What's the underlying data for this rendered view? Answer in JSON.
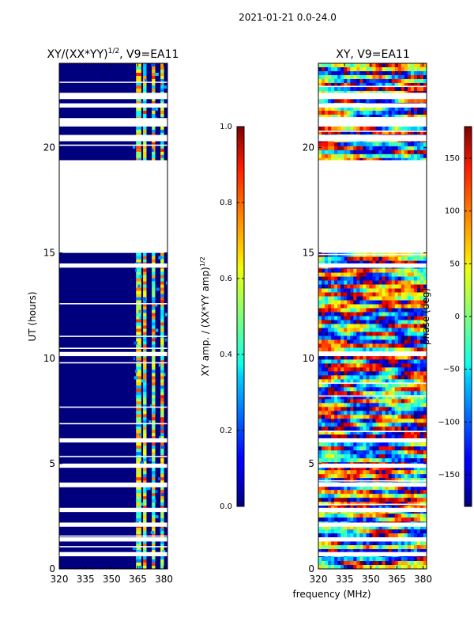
{
  "figure": {
    "suptitle": "2021-01-21 0.0-24.0",
    "common_xlabel": "frequency (MHz)"
  },
  "chart_data": [
    {
      "type": "heatmap",
      "title": "XY/(XX*YY)",
      "title_exponent": "1/2",
      "title_suffix": ", V9=EA11",
      "xlabel": "",
      "ylabel": "UT (hours)",
      "x_ticks": [
        320,
        335,
        350,
        365,
        380
      ],
      "x_tick_labels": [
        "320",
        "335",
        "350",
        "365",
        "380"
      ],
      "xlim": [
        320,
        382
      ],
      "y_ticks": [
        0,
        5,
        10,
        15,
        20
      ],
      "y_tick_labels": [
        "0",
        "5",
        "10",
        "15",
        "20"
      ],
      "ylim": [
        0,
        24
      ],
      "colorbar": {
        "label": "XY amp. / (XX*YY amp)",
        "label_exponent": "1/2",
        "range": [
          0.0,
          1.0
        ],
        "ticks": [
          0.0,
          0.2,
          0.4,
          0.6,
          0.8,
          1.0
        ],
        "tick_labels": [
          "0.0",
          "0.2",
          "0.4",
          "0.6",
          "0.8",
          "1.0"
        ]
      },
      "data_gaps_hours": [
        [
          15.0,
          19.4
        ],
        [
          22.3,
          22.6
        ],
        [
          21.9,
          22.1
        ],
        [
          21.0,
          21.4
        ],
        [
          20.3,
          20.6
        ],
        [
          14.3,
          14.5
        ],
        [
          10.1,
          10.3
        ],
        [
          6.0,
          6.2
        ],
        [
          4.8,
          5.0
        ],
        [
          3.9,
          4.1
        ],
        [
          2.7,
          2.9
        ],
        [
          2.0,
          2.2
        ],
        [
          1.3,
          1.5
        ],
        [
          0.6,
          0.8
        ]
      ],
      "bright_channels_mhz": [
        [
          364,
          367
        ],
        [
          368,
          370
        ],
        [
          373,
          375
        ],
        [
          378,
          380
        ]
      ]
    },
    {
      "type": "heatmap",
      "title": "XY, V9=EA11",
      "xlabel": "frequency (MHz)",
      "ylabel": "",
      "x_ticks": [
        320,
        335,
        350,
        365,
        380
      ],
      "x_tick_labels": [
        "320",
        "335",
        "350",
        "365",
        "380"
      ],
      "xlim": [
        320,
        382
      ],
      "y_ticks": [
        0,
        5,
        10,
        15,
        20
      ],
      "y_tick_labels": [
        "0",
        "5",
        "10",
        "15",
        "20"
      ],
      "ylim": [
        0,
        24
      ],
      "colorbar": {
        "label": "phase (deg)",
        "range": [
          -180,
          180
        ],
        "ticks": [
          -150,
          -100,
          -50,
          0,
          50,
          100,
          150
        ],
        "tick_labels": [
          "−150",
          "−100",
          "−50",
          "0",
          "50",
          "100",
          "150"
        ]
      },
      "data_gaps_hours": [
        [
          15.0,
          19.4
        ],
        [
          22.3,
          22.6
        ],
        [
          21.9,
          22.1
        ],
        [
          21.0,
          21.4
        ],
        [
          20.3,
          20.6
        ],
        [
          14.3,
          14.5
        ],
        [
          10.1,
          10.3
        ],
        [
          6.0,
          6.2
        ],
        [
          4.8,
          5.0
        ],
        [
          3.9,
          4.1
        ],
        [
          2.7,
          2.9
        ],
        [
          2.0,
          2.2
        ],
        [
          1.3,
          1.5
        ],
        [
          0.6,
          0.8
        ]
      ]
    }
  ]
}
